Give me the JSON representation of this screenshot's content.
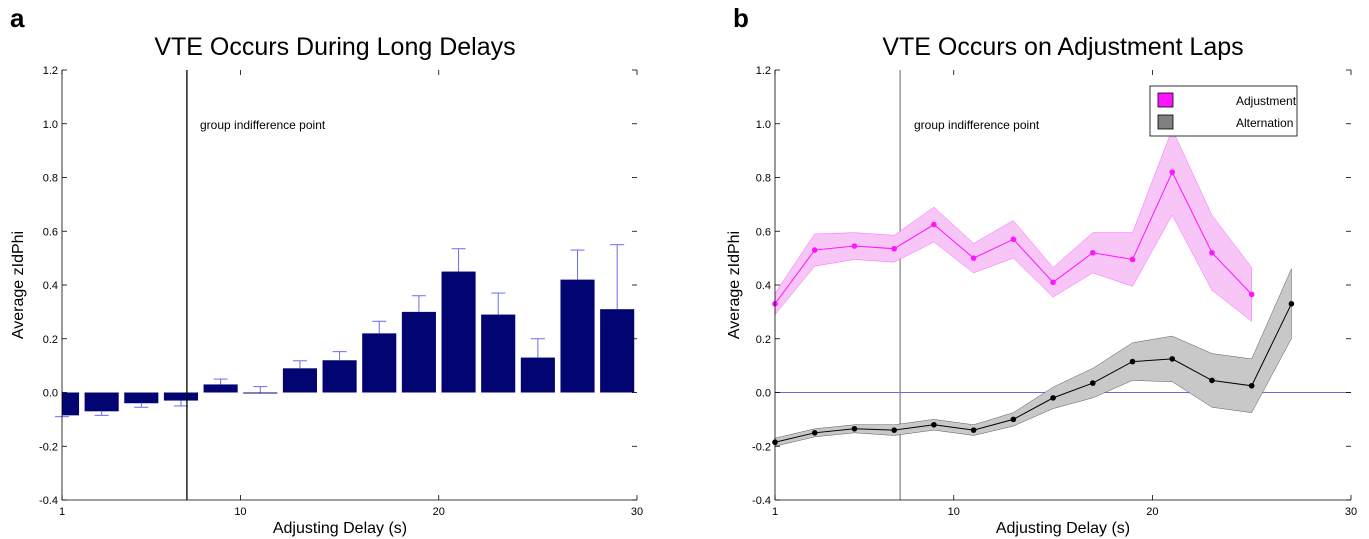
{
  "colors": {
    "bar_fill": "#020571",
    "error_bar": "#6b6bf0",
    "adjustment_line": "#ff14ff",
    "adjustment_band": "#f7c6f7",
    "alternation_line": "#000000",
    "alternation_band": "#c8c8c8",
    "zero_line": "#6b6bd8",
    "indifference_line_a": "#000000",
    "indifference_line_b": "#888888"
  },
  "chart_data": [
    {
      "panel": "a",
      "type": "bar",
      "title": "VTE Occurs During Long Delays",
      "xlabel": "Adjusting Delay (s)",
      "ylabel": "Average zIdPhi",
      "xlim": [
        1,
        30
      ],
      "ylim": [
        -0.4,
        1.2
      ],
      "xticks": [
        "1",
        "10",
        "20",
        "30"
      ],
      "xtick_values": [
        1,
        10,
        20,
        30
      ],
      "yticks": [
        "-0.4",
        "-0.2",
        "0.0",
        "0.2",
        "0.4",
        "0.6",
        "0.8",
        "1.0",
        "1.2"
      ],
      "ytick_values": [
        -0.4,
        -0.2,
        0.0,
        0.2,
        0.4,
        0.6,
        0.8,
        1.0,
        1.2
      ],
      "indifference_x": 7.3,
      "annotation": "group indifference point",
      "x": [
        1,
        3,
        5,
        7,
        9,
        11,
        13,
        15,
        17,
        19,
        21,
        23,
        25,
        27,
        29
      ],
      "values": [
        -0.085,
        -0.07,
        -0.04,
        -0.03,
        0.03,
        0.0,
        0.09,
        0.12,
        0.22,
        0.3,
        0.45,
        0.29,
        0.13,
        0.42,
        0.31
      ],
      "errors": [
        0.005,
        0.015,
        0.015,
        0.02,
        0.02,
        0.022,
        0.028,
        0.032,
        0.045,
        0.06,
        0.085,
        0.08,
        0.07,
        0.11,
        0.24
      ],
      "grid": false
    },
    {
      "panel": "b",
      "type": "line",
      "title": "VTE Occurs on Adjustment Laps",
      "xlabel": "Adjusting Delay (s)",
      "ylabel": "Average zIdPhi",
      "xlim": [
        1,
        30
      ],
      "ylim": [
        -0.4,
        1.2
      ],
      "xticks": [
        "1",
        "10",
        "20",
        "30"
      ],
      "xtick_values": [
        1,
        10,
        20,
        30
      ],
      "yticks": [
        "-0.4",
        "-0.2",
        "0.0",
        "0.2",
        "0.4",
        "0.6",
        "0.8",
        "1.0",
        "1.2"
      ],
      "ytick_values": [
        -0.4,
        -0.2,
        0.0,
        0.2,
        0.4,
        0.6,
        0.8,
        1.0,
        1.2
      ],
      "indifference_x": 7.3,
      "annotation": "group indifference point",
      "legend_position": "top-right",
      "zero_line": 0.0,
      "grid": false,
      "series": [
        {
          "name": "Adjustment",
          "x": [
            1,
            3,
            5,
            7,
            9,
            11,
            13,
            15,
            17,
            19,
            21,
            23,
            25
          ],
          "values": [
            0.33,
            0.53,
            0.545,
            0.535,
            0.625,
            0.5,
            0.57,
            0.41,
            0.52,
            0.495,
            0.82,
            0.52,
            0.365
          ],
          "errors": [
            0.04,
            0.06,
            0.05,
            0.05,
            0.065,
            0.055,
            0.07,
            0.055,
            0.075,
            0.1,
            0.16,
            0.14,
            0.1
          ]
        },
        {
          "name": "Alternation",
          "x": [
            1,
            3,
            5,
            7,
            9,
            11,
            13,
            15,
            17,
            19,
            21,
            23,
            25,
            27
          ],
          "values": [
            -0.185,
            -0.15,
            -0.135,
            -0.14,
            -0.12,
            -0.14,
            -0.1,
            -0.02,
            0.035,
            0.115,
            0.125,
            0.045,
            0.025,
            0.33
          ],
          "errors": [
            0.015,
            0.015,
            0.015,
            0.02,
            0.02,
            0.02,
            0.025,
            0.04,
            0.055,
            0.07,
            0.085,
            0.1,
            0.1,
            0.13
          ]
        }
      ]
    }
  ]
}
